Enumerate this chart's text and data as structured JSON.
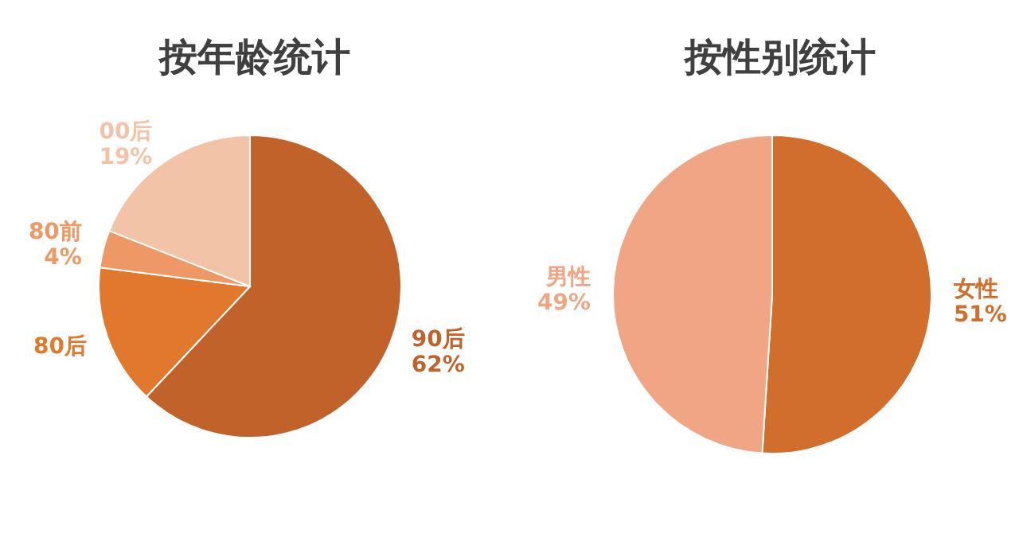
{
  "chart_data": [
    {
      "type": "pie",
      "title": "按年龄统计",
      "categories": [
        "90后",
        "80后",
        "80前",
        "00后"
      ],
      "values": [
        62,
        15,
        4,
        19
      ],
      "colors": [
        "#c0622a",
        "#e0782e",
        "#ee9866",
        "#f3c3a8"
      ],
      "value_labels": [
        "62%",
        null,
        "4%",
        "19%"
      ]
    },
    {
      "type": "pie",
      "title": "按性别统计",
      "categories": [
        "女性",
        "男性"
      ],
      "values": [
        51,
        49
      ],
      "colors": [
        "#d26e2c",
        "#f0a584"
      ],
      "value_labels": [
        "51%",
        "49%"
      ]
    }
  ]
}
